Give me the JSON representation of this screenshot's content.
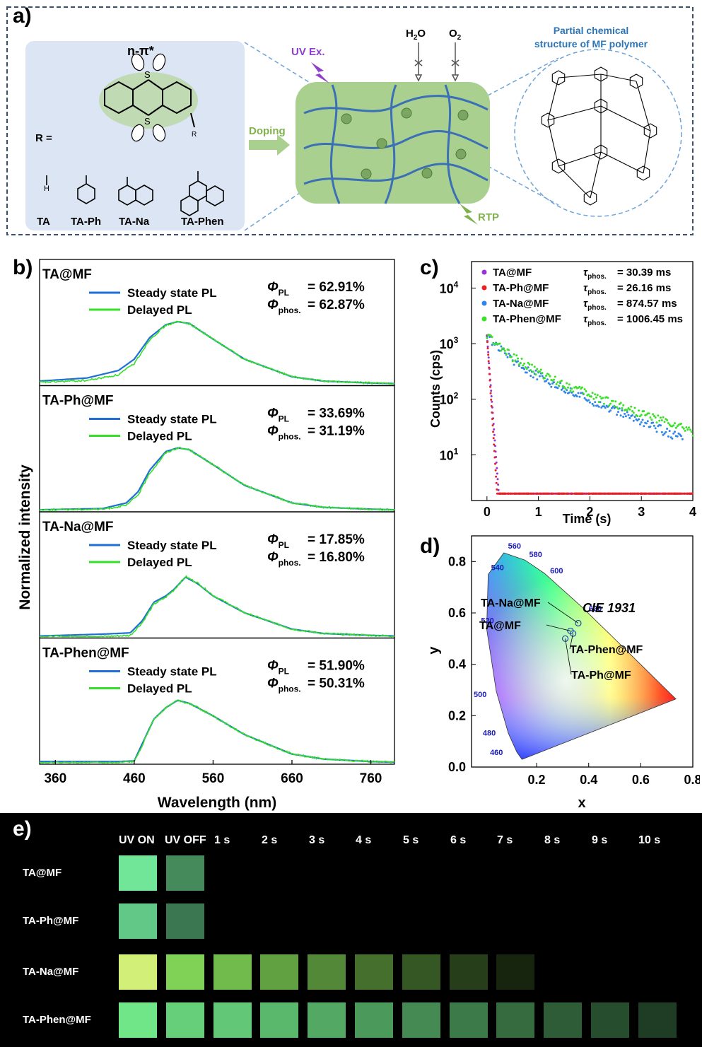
{
  "panel_a": {
    "label": "a)",
    "n_pi": "n-π*",
    "r_label": "R =",
    "atom_s": "S",
    "atom_h": "H",
    "atom_r": "R",
    "substituents": [
      "TA",
      "TA-Ph",
      "TA-Na",
      "TA-Phen"
    ],
    "doping": "Doping",
    "uv_ex": "UV Ex.",
    "h2o": "H",
    "h2o_sub": "2",
    "h2o_tail": "O",
    "o2": "O",
    "o2_sub": "2",
    "rtp": "RTP",
    "polymer_title_1": "Partial chemical",
    "polymer_title_2": "structure of MF polymer",
    "colors": {
      "box": "#dbe5f3",
      "matrix": "#a9d08e",
      "fiber": "#3b6fb6",
      "arrow": "#7fb24f",
      "uv": "#8e3fcf",
      "accent": "#2e75b6"
    }
  },
  "panel_b": {
    "label": "b)",
    "ylabel": "Normalized intensity",
    "xlabel": "Wavelength (nm)",
    "xticks": [
      "360",
      "460",
      "560",
      "660",
      "760"
    ],
    "legend_steady": "Steady state PL",
    "legend_delayed": "Delayed PL",
    "phi": "Φ",
    "sub_pl": "PL",
    "sub_phos": "phos.",
    "samples": [
      {
        "name": "TA@MF",
        "phi_pl": "= 62.91%",
        "phi_phos": "= 62.87%"
      },
      {
        "name": "TA-Ph@MF",
        "phi_pl": "= 33.69%",
        "phi_phos": "= 31.19%"
      },
      {
        "name": "TA-Na@MF",
        "phi_pl": "= 17.85%",
        "phi_phos": "= 16.80%"
      },
      {
        "name": "TA-Phen@MF",
        "phi_pl": "= 51.90%",
        "phi_phos": "= 50.31%"
      }
    ],
    "colors": {
      "steady": "#1f6fd6",
      "delayed": "#35e02a"
    }
  },
  "chart_data": [
    {
      "type": "line",
      "title": "",
      "xlabel": "Wavelength (nm)",
      "ylabel": "Normalized intensity",
      "xlim": [
        340,
        790
      ],
      "series": [
        {
          "name": "Steady state PL",
          "sample": "TA@MF",
          "x": [
            340,
            400,
            440,
            460,
            480,
            500,
            515,
            530,
            560,
            600,
            660,
            700,
            760,
            790
          ],
          "y": [
            0.05,
            0.1,
            0.22,
            0.4,
            0.75,
            0.95,
            1.0,
            0.97,
            0.72,
            0.4,
            0.12,
            0.05,
            0.02,
            0.01
          ]
        },
        {
          "name": "Delayed PL",
          "sample": "TA@MF",
          "x": [
            340,
            400,
            440,
            460,
            480,
            500,
            515,
            530,
            560,
            600,
            660,
            700,
            760,
            790
          ],
          "y": [
            0.03,
            0.06,
            0.15,
            0.33,
            0.72,
            0.94,
            1.0,
            0.97,
            0.72,
            0.4,
            0.12,
            0.05,
            0.02,
            0.01
          ]
        },
        {
          "name": "Steady state PL",
          "sample": "TA-Ph@MF",
          "x": [
            340,
            420,
            450,
            465,
            480,
            500,
            515,
            530,
            560,
            600,
            660,
            700,
            760,
            790
          ],
          "y": [
            0.01,
            0.03,
            0.12,
            0.3,
            0.65,
            0.94,
            1.0,
            0.97,
            0.73,
            0.4,
            0.12,
            0.05,
            0.02,
            0.01
          ]
        },
        {
          "name": "Delayed PL",
          "sample": "TA-Ph@MF",
          "x": [
            340,
            420,
            450,
            465,
            480,
            500,
            515,
            530,
            560,
            600,
            660,
            700,
            760,
            790
          ],
          "y": [
            0.01,
            0.02,
            0.08,
            0.25,
            0.6,
            0.92,
            1.0,
            0.97,
            0.73,
            0.4,
            0.12,
            0.05,
            0.02,
            0.01
          ]
        },
        {
          "name": "Steady state PL",
          "sample": "TA-Na@MF",
          "x": [
            340,
            420,
            455,
            470,
            485,
            500,
            510,
            525,
            540,
            560,
            600,
            660,
            700,
            760,
            790
          ],
          "y": [
            0.01,
            0.04,
            0.06,
            0.25,
            0.55,
            0.65,
            0.75,
            0.95,
            0.85,
            0.65,
            0.38,
            0.12,
            0.05,
            0.02,
            0.01
          ]
        },
        {
          "name": "Delayed PL",
          "sample": "TA-Na@MF",
          "x": [
            340,
            420,
            455,
            470,
            485,
            500,
            510,
            525,
            540,
            560,
            600,
            660,
            700,
            760,
            790
          ],
          "y": [
            0.0,
            0.0,
            0.02,
            0.22,
            0.52,
            0.63,
            0.74,
            0.96,
            0.86,
            0.66,
            0.38,
            0.12,
            0.05,
            0.02,
            0.01
          ]
        },
        {
          "name": "Steady state PL",
          "sample": "TA-Phen@MF",
          "x": [
            340,
            440,
            460,
            470,
            485,
            500,
            515,
            530,
            560,
            600,
            660,
            700,
            760,
            790
          ],
          "y": [
            0.02,
            0.02,
            0.03,
            0.3,
            0.7,
            0.88,
            1.0,
            0.95,
            0.75,
            0.45,
            0.14,
            0.06,
            0.02,
            0.01
          ]
        },
        {
          "name": "Delayed PL",
          "sample": "TA-Phen@MF",
          "x": [
            340,
            440,
            460,
            470,
            485,
            500,
            515,
            530,
            560,
            600,
            660,
            700,
            760,
            790
          ],
          "y": [
            0.0,
            0.0,
            0.02,
            0.28,
            0.7,
            0.88,
            1.0,
            0.95,
            0.75,
            0.45,
            0.14,
            0.06,
            0.02,
            0.01
          ]
        }
      ]
    },
    {
      "type": "scatter",
      "title": "",
      "xlabel": "Time (s)",
      "ylabel": "Counts (cps)",
      "xlim": [
        -0.3,
        4
      ],
      "ylim": [
        1.5,
        30000
      ],
      "yscale": "log",
      "xticks": [
        "0",
        "1",
        "2",
        "3",
        "4"
      ],
      "yticks": [
        "10",
        "10",
        "10",
        "10"
      ],
      "ytick_exponents": [
        "1",
        "2",
        "3",
        "4"
      ],
      "tau_symbol": "τ",
      "tau_sub": "phos.",
      "series": [
        {
          "name": "TA@MF",
          "tau": "= 30.39 ms",
          "color": "#9b30d9",
          "tau_ms": 30.39,
          "start": 1400
        },
        {
          "name": "TA-Ph@MF",
          "tau": "= 26.16 ms",
          "color": "#e8231f",
          "tau_ms": 26.16,
          "start": 1400
        },
        {
          "name": "TA-Na@MF",
          "tau": "= 874.57 ms",
          "color": "#2f86e8",
          "tau_ms": 874.57,
          "start": 1400
        },
        {
          "name": "TA-Phen@MF",
          "tau": "= 1006.45 ms",
          "color": "#3ce02a",
          "tau_ms": 1006.45,
          "start": 1400
        }
      ]
    },
    {
      "type": "scatter",
      "title": "CIE 1931",
      "xlabel": "x",
      "ylabel": "y",
      "xlim": [
        -0.05,
        0.8
      ],
      "ylim": [
        0,
        0.9
      ],
      "xticks": [
        "0.2",
        "0.4",
        "0.6",
        "0.8"
      ],
      "yticks": [
        "0.0",
        "0.2",
        "0.4",
        "0.6",
        "0.8"
      ],
      "wavelengths": [
        "460",
        "480",
        "500",
        "520",
        "540",
        "560",
        "580",
        "600",
        "620"
      ],
      "locus": [
        [
          0.144,
          0.03
        ],
        [
          0.124,
          0.058
        ],
        [
          0.091,
          0.133
        ],
        [
          0.045,
          0.295
        ],
        [
          0.008,
          0.538
        ],
        [
          0.014,
          0.75
        ],
        [
          0.074,
          0.834
        ],
        [
          0.155,
          0.806
        ],
        [
          0.23,
          0.754
        ],
        [
          0.373,
          0.624
        ],
        [
          0.512,
          0.487
        ],
        [
          0.627,
          0.372
        ],
        [
          0.735,
          0.265
        ]
      ],
      "points": [
        {
          "name": "TA-Na@MF",
          "x": 0.36,
          "y": 0.56
        },
        {
          "name": "TA@MF",
          "x": 0.33,
          "y": 0.53
        },
        {
          "name": "TA-Phen@MF",
          "x": 0.34,
          "y": 0.52
        },
        {
          "name": "TA-Ph@MF",
          "x": 0.31,
          "y": 0.5
        }
      ]
    }
  ],
  "panel_c": {
    "label": "c)"
  },
  "panel_d": {
    "label": "d)"
  },
  "panel_e": {
    "label": "e)",
    "headers": [
      "UV ON",
      "UV OFF",
      "1 s",
      "2 s",
      "3 s",
      "4 s",
      "5 s",
      "6 s",
      "7 s",
      "8 s",
      "9 s",
      "10 s"
    ],
    "rows": [
      {
        "name": "TA@MF",
        "visible_frames": 2
      },
      {
        "name": "TA-Ph@MF",
        "visible_frames": 2
      },
      {
        "name": "TA-Na@MF",
        "visible_frames": 9
      },
      {
        "name": "TA-Phen@MF",
        "visible_frames": 12
      }
    ]
  }
}
